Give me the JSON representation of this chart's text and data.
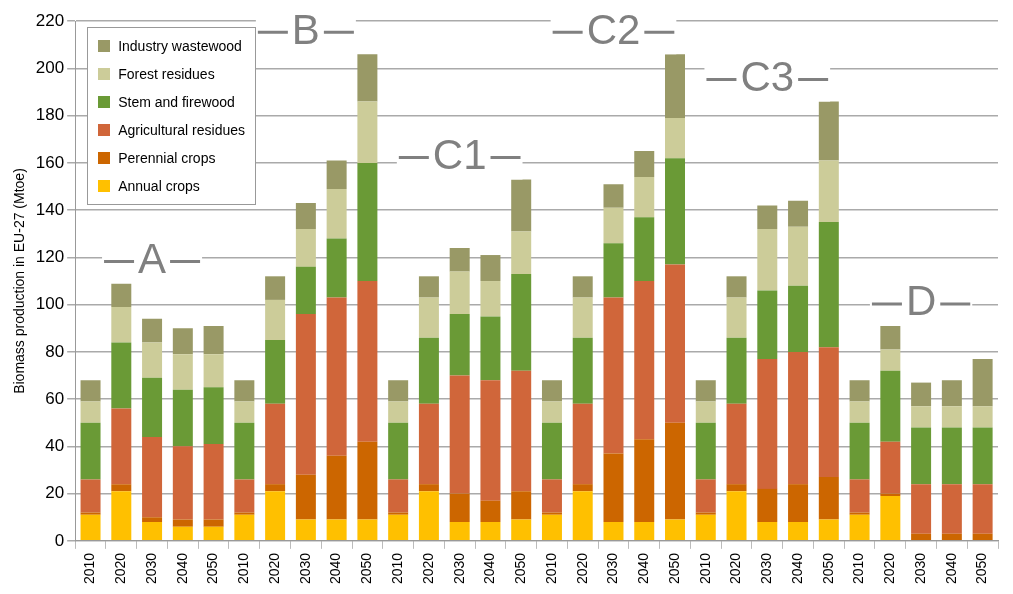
{
  "chart_data": {
    "type": "bar",
    "stacked": true,
    "ylabel": "Biomass production in EU-27 (Mtoe)",
    "categories": [
      "2010",
      "2020",
      "2030",
      "2040",
      "2050",
      "2010",
      "2020",
      "2030",
      "2040",
      "2050",
      "2010",
      "2020",
      "2030",
      "2040",
      "2050",
      "2010",
      "2020",
      "2030",
      "2040",
      "2050",
      "2010",
      "2020",
      "2030",
      "2040",
      "2050",
      "2010",
      "2020",
      "2030",
      "2040",
      "2050"
    ],
    "series": [
      {
        "name": "Annual crops",
        "color": "#ffc000",
        "values": [
          11,
          21,
          8,
          6,
          6,
          11,
          21,
          9,
          9,
          9,
          11,
          21,
          8,
          8,
          9,
          11,
          21,
          8,
          8,
          9,
          11,
          21,
          8,
          8,
          9,
          11,
          19,
          0,
          0,
          0
        ]
      },
      {
        "name": "Perennial crops",
        "color": "#cc6600",
        "values": [
          1,
          3,
          2,
          3,
          3,
          1,
          3,
          19,
          27,
          33,
          1,
          3,
          12,
          9,
          12,
          1,
          3,
          29,
          35,
          41,
          1,
          3,
          14,
          16,
          18,
          1,
          1,
          3,
          3,
          3
        ]
      },
      {
        "name": "Agricultural residues",
        "color": "#d0663a",
        "values": [
          14,
          32,
          34,
          31,
          32,
          14,
          34,
          68,
          67,
          68,
          14,
          34,
          50,
          51,
          51,
          14,
          34,
          66,
          67,
          67,
          14,
          34,
          55,
          56,
          55,
          14,
          22,
          21,
          21,
          21
        ]
      },
      {
        "name": "Stem and firewood",
        "color": "#6a9a36",
        "values": [
          24,
          28,
          25,
          24,
          24,
          24,
          27,
          20,
          25,
          50,
          24,
          28,
          26,
          27,
          41,
          24,
          28,
          23,
          27,
          45,
          24,
          28,
          29,
          28,
          53,
          24,
          30,
          24,
          24,
          24
        ]
      },
      {
        "name": "Forest residues",
        "color": "#cccc99",
        "values": [
          9,
          15,
          15,
          15,
          14,
          9,
          17,
          16,
          21,
          26,
          9,
          17,
          18,
          15,
          18,
          9,
          17,
          15,
          17,
          17,
          9,
          17,
          26,
          25,
          26,
          9,
          9,
          9,
          9,
          9
        ]
      },
      {
        "name": "Industry wastewood",
        "color": "#999966",
        "values": [
          9,
          10,
          10,
          11,
          12,
          9,
          10,
          11,
          12,
          20,
          9,
          9,
          10,
          11,
          22,
          9,
          9,
          10,
          11,
          27,
          9,
          9,
          10,
          11,
          25,
          9,
          10,
          10,
          11,
          20
        ]
      }
    ],
    "ylim": [
      0,
      220
    ],
    "yticks": [
      0,
      20,
      40,
      60,
      80,
      100,
      120,
      140,
      160,
      180,
      200,
      220
    ],
    "grid": "y",
    "legend": "top left",
    "annotations": [
      "A",
      "B",
      "C1",
      "C2",
      "C3",
      "D"
    ]
  }
}
